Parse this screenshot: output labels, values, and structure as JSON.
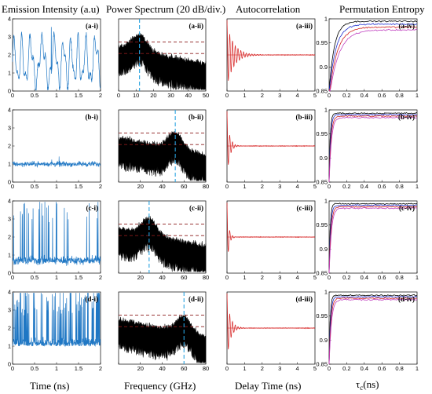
{
  "column_titles": [
    "Emission Intensity (a.u)",
    "Power Spectrum (20 dB/div.)",
    "Autocorrelation",
    "Permutation Entropy"
  ],
  "xlabels": [
    "Time (ns)",
    "Frequency (GHz)",
    "Delay Time (ns)",
    "τ",
    "c",
    "(ns)"
  ],
  "panel_labels": [
    [
      "(a-i)",
      "(a-ii)",
      "(a-iii)",
      "(a-iv)"
    ],
    [
      "(b-i)",
      "(b-ii)",
      "(b-iii)",
      "(b-iv)"
    ],
    [
      "(c-i)",
      "(c-ii)",
      "(c-iii)",
      "(c-iv)"
    ],
    [
      "(d-i)",
      "(d-ii)",
      "(d-iii)",
      "(d-iv)"
    ]
  ],
  "colors": {
    "intensity": "#1f77c4",
    "spectrum": "#000000",
    "dashed_horizontal": "#8b1a1a",
    "dashed_vertical": "#29a3e0",
    "autocorrelation": "#d62020",
    "pe_series": [
      "#000000",
      "#2030d0",
      "#d02020",
      "#c040c0"
    ]
  },
  "chart_data": [
    {
      "row": "a",
      "type": "line",
      "title": "Emission Intensity (a.u)",
      "x_ticks": [
        "0",
        "0.5",
        "1",
        "1.5",
        "2"
      ],
      "y_ticks": [
        "0",
        "1",
        "2",
        "3",
        "4"
      ],
      "xlim": [
        0,
        2
      ],
      "ylim": [
        0,
        4
      ],
      "signal": "regular oscillation, peaks up to ~3.6"
    },
    {
      "row": "a",
      "type": "line",
      "title": "Power Spectrum (20 dB/div.)",
      "x_ticks": [
        "0",
        "10",
        "20",
        "30",
        "40",
        "50"
      ],
      "xlim": [
        0,
        50
      ],
      "peak_frequency_marker": 12,
      "dashed_levels": [
        "upper",
        "lower"
      ]
    },
    {
      "row": "a",
      "type": "line",
      "title": "Autocorrelation",
      "x_ticks": [
        "0",
        "1",
        "2",
        "3",
        "4",
        "5"
      ],
      "xlim": [
        0,
        5
      ],
      "decay_time": 0.4
    },
    {
      "row": "a",
      "type": "line",
      "title": "Permutation Entropy",
      "x_ticks": [
        "0",
        "0.2",
        "0.4",
        "0.6",
        "0.8",
        "1"
      ],
      "y_ticks": [
        "0.85",
        "0.9",
        "0.95",
        "1"
      ],
      "xlim": [
        0,
        1
      ],
      "ylim": [
        0.85,
        1
      ],
      "plateau": 0.995
    },
    {
      "row": "b",
      "type": "line",
      "x_ticks": [
        "0",
        "0.5",
        "1",
        "1.5",
        "2"
      ],
      "y_ticks": [
        "0",
        "1",
        "2",
        "3",
        "4"
      ],
      "xlim": [
        0,
        2
      ],
      "ylim": [
        0,
        4
      ],
      "signal": "noisy around 1"
    },
    {
      "row": "b",
      "type": "line",
      "x_ticks": [
        "20",
        "40",
        "60",
        "80"
      ],
      "xlim": [
        0,
        80
      ],
      "peak_frequency_marker": 52
    },
    {
      "row": "b",
      "type": "line",
      "x_ticks": [
        "0",
        "1",
        "2",
        "3",
        "4",
        "5"
      ],
      "xlim": [
        0,
        5
      ],
      "decay_time": 0.15
    },
    {
      "row": "b",
      "type": "line",
      "x_ticks": [
        "0",
        "0.2",
        "0.4",
        "0.6",
        "0.8",
        "1"
      ],
      "y_ticks": [
        "0.85",
        "0.9",
        "0.95",
        "1"
      ],
      "xlim": [
        0,
        1
      ],
      "ylim": [
        0.85,
        1
      ],
      "plateau": 0.993
    },
    {
      "row": "c",
      "type": "line",
      "x_ticks": [
        "0",
        "0.5",
        "1",
        "1.5",
        "2"
      ],
      "y_ticks": [
        "0",
        "1",
        "2",
        "3",
        "4"
      ],
      "xlim": [
        0,
        2
      ],
      "ylim": [
        0,
        4
      ],
      "signal": "irregular spiking up to ~4"
    },
    {
      "row": "c",
      "type": "line",
      "x_ticks": [
        "20",
        "40",
        "60",
        "80"
      ],
      "xlim": [
        0,
        80
      ],
      "peak_frequency_marker": 28
    },
    {
      "row": "c",
      "type": "line",
      "x_ticks": [
        "0",
        "1",
        "2",
        "3",
        "4",
        "5"
      ],
      "xlim": [
        0,
        5
      ],
      "decay_time": 0.1
    },
    {
      "row": "c",
      "type": "line",
      "x_ticks": [
        "0",
        "0.2",
        "0.4",
        "0.6",
        "0.8",
        "1"
      ],
      "y_ticks": [
        "0.85",
        "0.9",
        "0.95",
        "1"
      ],
      "xlim": [
        0,
        1
      ],
      "ylim": [
        0.85,
        1
      ],
      "plateau": 0.994
    },
    {
      "row": "d",
      "type": "line",
      "x_ticks": [
        "0",
        "0.5",
        "1",
        "1.5",
        "2"
      ],
      "y_ticks": [
        "0",
        "1",
        "2",
        "3",
        "4"
      ],
      "xlim": [
        0,
        2
      ],
      "ylim": [
        0,
        4
      ],
      "signal": "dense chaotic spiking up to ~4"
    },
    {
      "row": "d",
      "type": "line",
      "x_ticks": [
        "20",
        "40",
        "60",
        "80"
      ],
      "xlim": [
        0,
        80
      ],
      "peak_frequency_marker": 60
    },
    {
      "row": "d",
      "type": "line",
      "x_ticks": [
        "0",
        "1",
        "2",
        "3",
        "4",
        "5"
      ],
      "xlim": [
        0,
        5
      ],
      "decay_time": 0.2
    },
    {
      "row": "d",
      "type": "line",
      "x_ticks": [
        "0",
        "0.2",
        "0.4",
        "0.6",
        "0.8",
        "1"
      ],
      "y_ticks": [
        "0.85",
        "0.9",
        "0.95",
        "1"
      ],
      "xlim": [
        0,
        1
      ],
      "ylim": [
        0.85,
        1
      ],
      "plateau": 0.993
    }
  ]
}
